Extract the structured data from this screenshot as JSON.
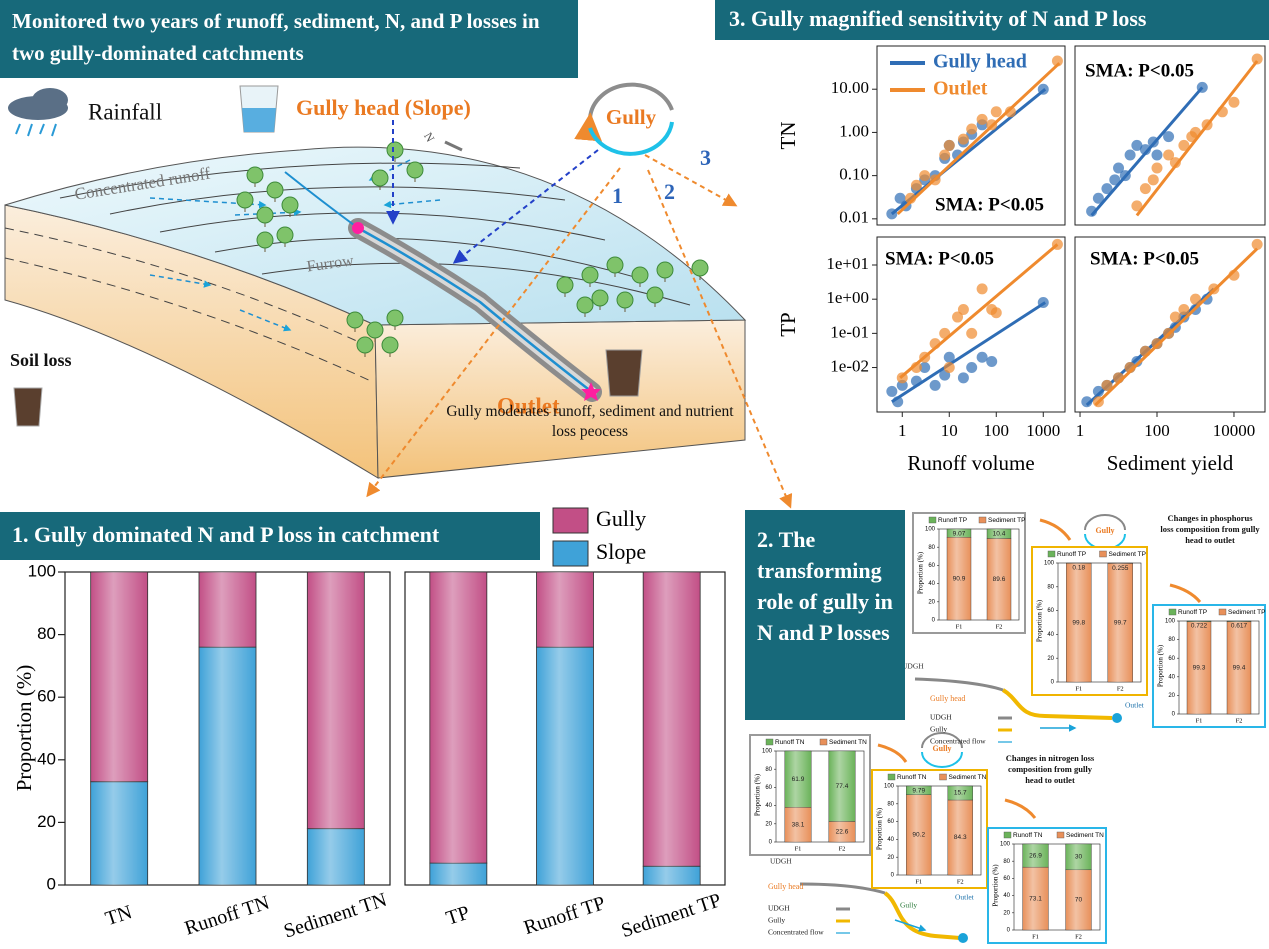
{
  "header": {
    "title": "Monitored two years of runoff, sediment, N, and P losses in two gully-dominated catchments"
  },
  "diagram": {
    "rainfall": "Rainfall",
    "gully_head": "Gully head (Slope)",
    "gully": "Gully",
    "arrows": [
      "1",
      "2",
      "3"
    ],
    "concentrated_runoff": "Concentrated runoff",
    "furrow": "Furrow",
    "north": "N",
    "soil_loss": "Soil loss",
    "outlet": "Outlet",
    "caption": "Gully moderates runoff, sediment and nutrient loss peocess"
  },
  "panel_1": {
    "title": "1. Gully dominated N and P loss in catchment"
  },
  "panel_2": {
    "title": "2. The transforming role of gully in N and P losses",
    "phosphorus_note": "Changes in phosphorus loss composition from gully head to outlet",
    "nitrogen_note": "Changes in nitrogen loss composition from gully head to outlet",
    "phosphorus_flow": {
      "udgh": "UDGH",
      "gully_head": "Gully head",
      "gully": "Gully",
      "outlet": "Outlet",
      "icon": "Gully",
      "legend": [
        "UDGH",
        "Gully",
        "Concentrated flow"
      ]
    },
    "nitrogen_flow": {
      "udgh": "UDGH",
      "gully_head": "Gully head",
      "gully": "Gully",
      "outlet": "Outlet",
      "icon": "Gully",
      "legend": [
        "UDGH",
        "Gully",
        "Concentrated flow"
      ]
    }
  },
  "panel_3": {
    "title": "3. Gully magnified sensitivity of N and P loss"
  },
  "chart_data": [
    {
      "type": "bar",
      "stacked": true,
      "ylabel": "Proportion (%)",
      "categories": [
        "TN",
        "Runoff TN",
        "Sediment TN",
        "TP",
        "Runoff TP",
        "Sediment TP"
      ],
      "series": [
        {
          "name": "Gully",
          "color": "#c24f86",
          "values": [
            67,
            24,
            82,
            93,
            24,
            94
          ]
        },
        {
          "name": "Slope",
          "color": "#3fa2d8",
          "values": [
            33,
            76,
            18,
            7,
            76,
            6
          ]
        }
      ],
      "ylim": [
        0,
        100
      ],
      "yticks": [
        0,
        20,
        40,
        60,
        80,
        100
      ]
    },
    {
      "type": "scatter",
      "log_x": true,
      "log_y": true,
      "ylabel": "TN",
      "annotation": "SMA: P<0.05",
      "legend": "upper left",
      "xlim": [
        0.29,
        2900
      ],
      "ylim": [
        0.0072,
        100
      ],
      "yticks": [
        0.01,
        {
          "value": 0.1,
          "label": "0.10"
        },
        {
          "value": 1,
          "label": "1.00"
        },
        {
          "value": 10,
          "label": "10.00"
        }
      ],
      "series": [
        {
          "name": "Gully head",
          "color": "#2f6db5",
          "x": [
            0.6,
            0.9,
            1.2,
            2,
            3,
            5,
            8,
            10,
            15,
            20,
            30,
            50,
            1000
          ],
          "values": [
            0.013,
            0.03,
            0.02,
            0.05,
            0.08,
            0.1,
            0.25,
            0.5,
            0.3,
            0.6,
            0.9,
            1.5,
            10
          ],
          "fit_x": [
            0.6,
            1100
          ],
          "fit_y": [
            0.013,
            10
          ]
        },
        {
          "name": "Outlet",
          "color": "#ef8a2e",
          "x": [
            1.5,
            2,
            3,
            5,
            8,
            10,
            20,
            30,
            50,
            80,
            100,
            200,
            2000
          ],
          "values": [
            0.03,
            0.06,
            0.1,
            0.08,
            0.3,
            0.5,
            0.7,
            1.2,
            2,
            1.5,
            3,
            3,
            45
          ],
          "fit_x": [
            0.8,
            2200
          ],
          "fit_y": [
            0.013,
            40
          ]
        }
      ]
    },
    {
      "type": "scatter",
      "log_x": true,
      "log_y": true,
      "annotation": "SMA: P<0.05",
      "xlim": [
        0.74,
        64000
      ],
      "ylim": [
        0.0072,
        100
      ],
      "series": [
        {
          "color": "#2f6db5",
          "x": [
            2,
            3,
            5,
            8,
            10,
            15,
            20,
            30,
            50,
            80,
            100,
            200,
            1500
          ],
          "values": [
            0.015,
            0.03,
            0.05,
            0.08,
            0.15,
            0.1,
            0.3,
            0.5,
            0.4,
            0.6,
            0.3,
            0.8,
            11
          ],
          "fit_x": [
            2,
            1500
          ],
          "fit_y": [
            0.012,
            11
          ]
        },
        {
          "color": "#ef8a2e",
          "x": [
            30,
            50,
            80,
            100,
            200,
            300,
            500,
            800,
            1000,
            2000,
            5000,
            10000,
            40000
          ],
          "values": [
            0.02,
            0.05,
            0.08,
            0.15,
            0.3,
            0.2,
            0.5,
            0.8,
            1,
            1.5,
            3,
            5,
            50
          ],
          "fit_x": [
            30,
            40000
          ],
          "fit_y": [
            0.012,
            45
          ]
        }
      ]
    },
    {
      "type": "scatter",
      "log_x": true,
      "log_y": true,
      "ylabel": "TP",
      "xlabel": "Runoff volume",
      "annotation": "SMA: P<0.05",
      "xlim": [
        0.29,
        2900
      ],
      "ylim": [
        0.0005,
        66
      ],
      "xticks": [
        1,
        10,
        100,
        1000
      ],
      "yticks": [
        {
          "value": 0.01,
          "label": "1e-02"
        },
        {
          "value": 0.1,
          "label": "1e-01"
        },
        {
          "value": 1,
          "label": "1e+00"
        },
        {
          "value": 10,
          "label": "1e+01"
        }
      ],
      "series": [
        {
          "color": "#2f6db5",
          "x": [
            0.6,
            0.8,
            1,
            2,
            3,
            5,
            8,
            10,
            20,
            30,
            50,
            80,
            1000
          ],
          "values": [
            0.002,
            0.001,
            0.003,
            0.004,
            0.01,
            0.003,
            0.006,
            0.02,
            0.005,
            0.01,
            0.02,
            0.015,
            0.8
          ],
          "fit_x": [
            0.6,
            1100
          ],
          "fit_y": [
            0.001,
            0.8
          ]
        },
        {
          "color": "#ef8a2e",
          "x": [
            1,
            2,
            3,
            5,
            8,
            10,
            15,
            20,
            30,
            50,
            80,
            100,
            2000
          ],
          "values": [
            0.005,
            0.01,
            0.02,
            0.05,
            0.1,
            0.01,
            0.3,
            0.5,
            0.1,
            2,
            0.5,
            0.4,
            40
          ],
          "fit_x": [
            0.9,
            2000
          ],
          "fit_y": [
            0.005,
            40
          ]
        }
      ]
    },
    {
      "type": "scatter",
      "log_x": true,
      "log_y": true,
      "xlabel": "Sediment yield",
      "annotation": "SMA: P<0.05",
      "xlim": [
        0.74,
        64000
      ],
      "ylim": [
        0.0005,
        66
      ],
      "xticks": [
        1,
        100,
        10000
      ],
      "series": [
        {
          "color": "#2f6db5",
          "x": [
            1.5,
            3,
            5,
            10,
            20,
            30,
            50,
            100,
            200,
            300,
            500,
            1000,
            2000
          ],
          "values": [
            0.001,
            0.002,
            0.003,
            0.005,
            0.01,
            0.015,
            0.03,
            0.05,
            0.1,
            0.15,
            0.3,
            0.5,
            1
          ],
          "fit_x": [
            1.5,
            3000
          ],
          "fit_y": [
            0.0008,
            2
          ]
        },
        {
          "color": "#ef8a2e",
          "x": [
            3,
            5,
            10,
            20,
            50,
            100,
            200,
            300,
            500,
            1000,
            3000,
            10000,
            40000
          ],
          "values": [
            0.001,
            0.003,
            0.005,
            0.01,
            0.03,
            0.05,
            0.1,
            0.3,
            0.5,
            1,
            2,
            5,
            40
          ],
          "fit_x": [
            2.5,
            40000
          ],
          "fit_y": [
            0.0008,
            30
          ]
        }
      ]
    },
    {
      "type": "bar",
      "stacked": true,
      "ylabel": "Proportion (%)",
      "categories": [
        "F1",
        "F2"
      ],
      "ylim": [
        0,
        100
      ],
      "yticks": [
        0,
        20,
        40,
        60,
        80,
        100
      ],
      "series": [
        {
          "name": "Runoff TP",
          "color": "#6bb35a",
          "values": [
            9.07,
            10.4
          ]
        },
        {
          "name": "Sediment TP",
          "color": "#e8905a",
          "values": [
            90.9,
            89.6
          ]
        }
      ]
    },
    {
      "type": "bar",
      "stacked": true,
      "ylabel": "Proportion (%)",
      "categories": [
        "F1",
        "F2"
      ],
      "ylim": [
        0,
        100
      ],
      "yticks": [
        0,
        20,
        40,
        60,
        80,
        100
      ],
      "series": [
        {
          "name": "Runoff TP",
          "color": "#6bb35a",
          "values": [
            0.18,
            0.255
          ]
        },
        {
          "name": "Sediment TP",
          "color": "#e8905a",
          "values": [
            99.8,
            99.7
          ]
        }
      ]
    },
    {
      "type": "bar",
      "stacked": true,
      "ylabel": "Proportion (%)",
      "categories": [
        "F1",
        "F2"
      ],
      "ylim": [
        0,
        100
      ],
      "yticks": [
        0,
        20,
        40,
        60,
        80,
        100
      ],
      "series": [
        {
          "name": "Runoff TP",
          "color": "#6bb35a",
          "values": [
            0.722,
            0.617
          ]
        },
        {
          "name": "Sediment TP",
          "color": "#e8905a",
          "values": [
            99.3,
            99.4
          ]
        }
      ]
    },
    {
      "type": "bar",
      "stacked": true,
      "ylabel": "Proportion (%)",
      "categories": [
        "F1",
        "F2"
      ],
      "ylim": [
        0,
        100
      ],
      "yticks": [
        0,
        20,
        40,
        60,
        80,
        100
      ],
      "series": [
        {
          "name": "Runoff TN",
          "color": "#6bb35a",
          "values": [
            61.9,
            77.4
          ]
        },
        {
          "name": "Sediment TN",
          "color": "#e8905a",
          "values": [
            38.1,
            22.6
          ]
        }
      ]
    },
    {
      "type": "bar",
      "stacked": true,
      "ylabel": "Proportion (%)",
      "categories": [
        "F1",
        "F2"
      ],
      "ylim": [
        0,
        100
      ],
      "yticks": [
        0,
        20,
        40,
        60,
        80,
        100
      ],
      "series": [
        {
          "name": "Runoff TN",
          "color": "#6bb35a",
          "values": [
            9.79,
            15.7
          ]
        },
        {
          "name": "Sediment TN",
          "color": "#e8905a",
          "values": [
            90.2,
            84.3
          ]
        }
      ]
    },
    {
      "type": "bar",
      "stacked": true,
      "ylabel": "Proportion (%)",
      "categories": [
        "F1",
        "F2"
      ],
      "ylim": [
        0,
        100
      ],
      "yticks": [
        0,
        20,
        40,
        60,
        80,
        100
      ],
      "series": [
        {
          "name": "Runoff TN",
          "color": "#6bb35a",
          "values": [
            26.9,
            30
          ]
        },
        {
          "name": "Sediment TN",
          "color": "#e8905a",
          "values": [
            73.1,
            70
          ]
        }
      ]
    }
  ]
}
